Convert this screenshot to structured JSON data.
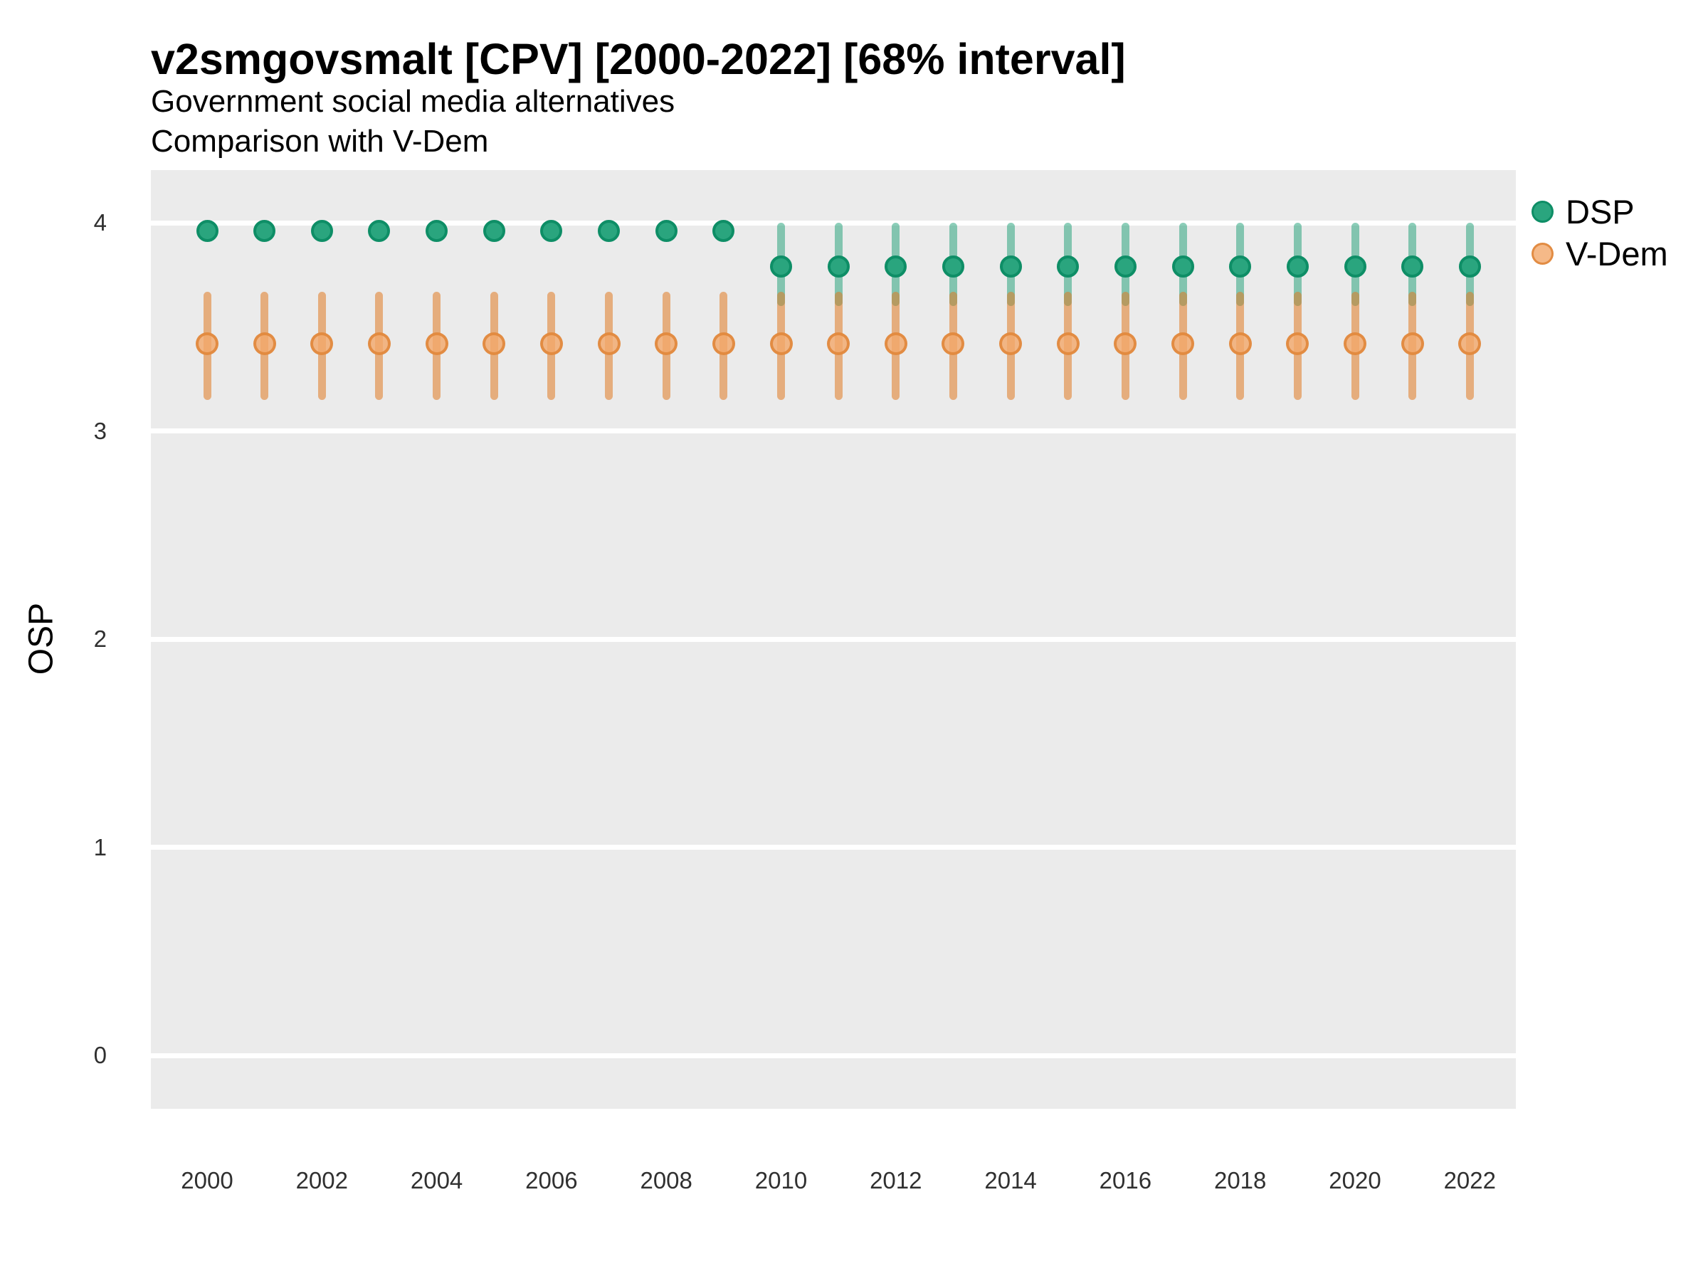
{
  "header": {
    "title": "v2smgovsmalt [CPV] [2000-2022] [68% interval]",
    "subtitle1": "Government social media alternatives",
    "subtitle2": "Comparison with V-Dem"
  },
  "axes": {
    "y": {
      "label": "OSP",
      "ticks": [
        0,
        1,
        2,
        3,
        4
      ],
      "ylim": [
        -0.25,
        4.25
      ],
      "grid": "major-white-on-gray"
    },
    "x": {
      "ticks": [
        2000,
        2002,
        2004,
        2006,
        2008,
        2010,
        2012,
        2014,
        2016,
        2018,
        2020,
        2022
      ]
    }
  },
  "legend": {
    "position": "right-top",
    "dsp_label": "DSP",
    "vdem_label": "V-Dem"
  },
  "colors": {
    "panel_bg": "#ebebeb",
    "gridline": "#ffffff",
    "dsp_point": "#2aa57e",
    "dsp_point_border": "#0e8e66",
    "dsp_interval": "rgba(26,158,115,0.5)",
    "vdem_point": "rgba(243,167,106,0.8)",
    "vdem_point_border": "rgba(224,135,60,0.9)",
    "vdem_interval": "rgba(224,122,34,0.55)"
  },
  "chart_data": {
    "type": "scatter",
    "subtype": "point-interval",
    "interval_level": "68%",
    "x": [
      2000,
      2001,
      2002,
      2003,
      2004,
      2005,
      2006,
      2007,
      2008,
      2009,
      2010,
      2011,
      2012,
      2013,
      2014,
      2015,
      2016,
      2017,
      2018,
      2019,
      2020,
      2021,
      2022
    ],
    "series": [
      {
        "name": "DSP",
        "values": [
          3.96,
          3.96,
          3.96,
          3.96,
          3.96,
          3.96,
          3.96,
          3.96,
          3.96,
          3.96,
          3.79,
          3.79,
          3.79,
          3.79,
          3.79,
          3.79,
          3.79,
          3.79,
          3.79,
          3.79,
          3.79,
          3.79,
          3.79
        ],
        "interval_low": [
          null,
          null,
          null,
          null,
          null,
          null,
          null,
          null,
          null,
          null,
          3.6,
          3.6,
          3.6,
          3.6,
          3.6,
          3.6,
          3.6,
          3.6,
          3.6,
          3.6,
          3.6,
          3.6,
          3.6
        ],
        "interval_high": [
          null,
          null,
          null,
          null,
          null,
          null,
          null,
          null,
          null,
          null,
          4.0,
          4.0,
          4.0,
          4.0,
          4.0,
          4.0,
          4.0,
          4.0,
          4.0,
          4.0,
          4.0,
          4.0,
          4.0
        ]
      },
      {
        "name": "V-Dem",
        "values": [
          3.42,
          3.42,
          3.42,
          3.42,
          3.42,
          3.42,
          3.42,
          3.42,
          3.42,
          3.42,
          3.42,
          3.42,
          3.42,
          3.42,
          3.42,
          3.42,
          3.42,
          3.42,
          3.42,
          3.42,
          3.42,
          3.42,
          3.42
        ],
        "interval_low": [
          3.15,
          3.15,
          3.15,
          3.15,
          3.15,
          3.15,
          3.15,
          3.15,
          3.15,
          3.15,
          3.15,
          3.15,
          3.15,
          3.15,
          3.15,
          3.15,
          3.15,
          3.15,
          3.15,
          3.15,
          3.15,
          3.15,
          3.15
        ],
        "interval_high": [
          3.67,
          3.67,
          3.67,
          3.67,
          3.67,
          3.67,
          3.67,
          3.67,
          3.67,
          3.67,
          3.67,
          3.67,
          3.67,
          3.67,
          3.67,
          3.67,
          3.67,
          3.67,
          3.67,
          3.67,
          3.67,
          3.67,
          3.67
        ]
      }
    ],
    "title": "v2smgovsmalt [CPV] [2000-2022] [68% interval]",
    "xlabel": "",
    "ylabel": "OSP"
  }
}
